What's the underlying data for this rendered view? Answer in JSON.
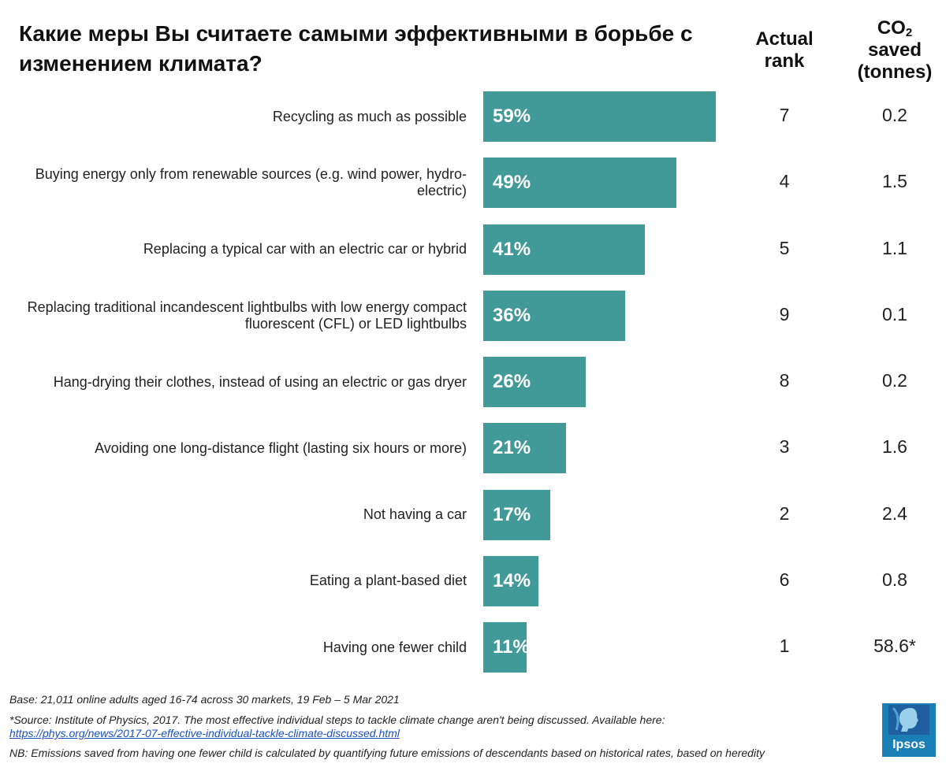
{
  "title": "Какие меры Вы считаете самыми эффективными в борьбе с изменением климата?",
  "columns": {
    "rank_line1": "Actual",
    "rank_line2": "rank",
    "co2_prefix": "CO",
    "co2_sub": "2",
    "co2_line2": "saved",
    "co2_line3": "(tonnes)"
  },
  "chart_data": {
    "type": "bar",
    "orientation": "horizontal",
    "title": "Какие меры Вы считаете самыми эффективными в борьбе с изменением климата?",
    "xlim": [
      0,
      100
    ],
    "categories": [
      "Recycling as much as possible",
      "Buying energy only from renewable sources (e.g. wind power, hydro-electric)",
      "Replacing a typical car with an electric car or hybrid",
      "Replacing traditional incandescent lightbulbs with low energy compact fluorescent (CFL) or LED lightbulbs",
      "Hang-drying their clothes, instead of using an electric or gas dryer",
      "Avoiding one long-distance flight (lasting six hours or more)",
      "Not having a car",
      "Eating a plant-based diet",
      "Having one fewer child"
    ],
    "values": [
      59,
      49,
      41,
      36,
      26,
      21,
      17,
      14,
      11
    ],
    "value_labels": [
      "59%",
      "49%",
      "41%",
      "36%",
      "26%",
      "21%",
      "17%",
      "14%",
      "11%"
    ],
    "actual_rank": [
      "7",
      "4",
      "5",
      "9",
      "8",
      "3",
      "2",
      "6",
      "1"
    ],
    "co2_saved": [
      "0.2",
      "1.5",
      "1.1",
      "0.1",
      "0.2",
      "1.6",
      "2.4",
      "0.8",
      "58.6*"
    ],
    "bar_color": "#419a98"
  },
  "footer": {
    "base": "Base: 21,011 online adults aged 16-74 across 30 markets,  19 Feb – 5 Mar 2021",
    "source": "*Source: Institute of Physics, 2017. The most effective individual steps to tackle climate change aren't being discussed. Available here:",
    "link": "https://phys.org/news/2017-07-effective-individual-tackle-climate-discussed.html",
    "note": "NB: Emissions saved from having one fewer child is calculated by quantifying future emissions of descendants based on historical rates, based on heredity"
  },
  "logo": {
    "text": "Ipsos",
    "color": "#1a7fb5"
  }
}
